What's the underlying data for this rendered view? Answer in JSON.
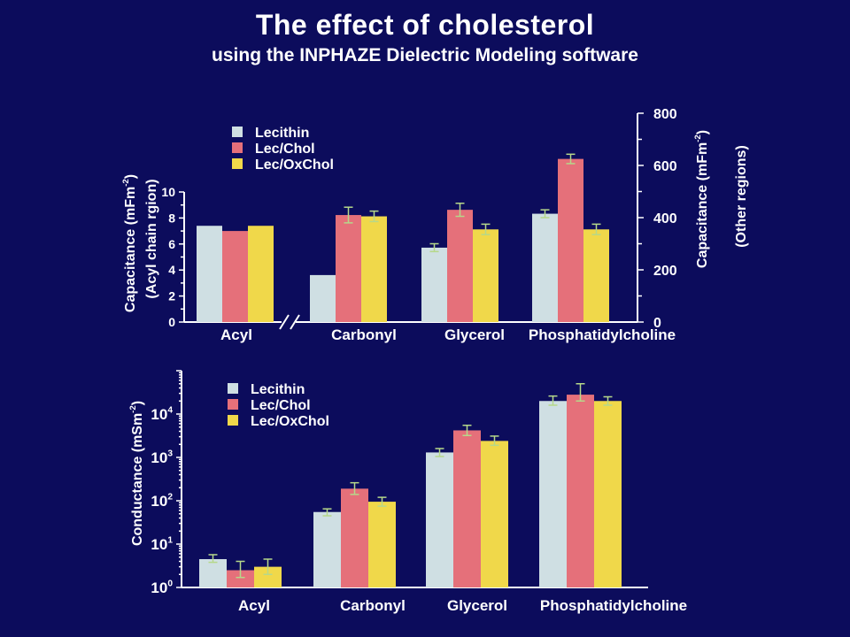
{
  "title": "The effect of cholesterol",
  "subtitle": "using the INPHAZE Dielectric Modeling software",
  "colors": {
    "background": "#0c0c5c",
    "Lecithin": "#cfdfe3",
    "Lec/Chol": "#e5707a",
    "Lec/OxChol": "#f0d84a",
    "errorbar": "#b6d88a"
  },
  "chart_data": [
    {
      "type": "bar",
      "categories": [
        "Acyl",
        "Carbonyl",
        "Glycerol",
        "Phosphatidylcholine"
      ],
      "legend": {
        "entries": [
          "Lecithin",
          "Lec/Chol",
          "Lec/OxChol"
        ],
        "entry_colors": [
          "#ffffff",
          "#ff7fbf",
          "#ffd800"
        ]
      },
      "left_axis": {
        "label_line1": "Capacitance (mFm",
        "label_sup": "-2",
        "label_line1_end": ")",
        "label_line2": "(Acyl chain rgion)",
        "range": [
          0,
          10
        ],
        "ticks": [
          "0",
          "2",
          "4",
          "6",
          "8",
          "10"
        ],
        "applies_to": [
          "Acyl"
        ]
      },
      "right_axis": {
        "label_line1": "Capacitance (mFm",
        "label_sup": "-2",
        "label_line1_end": ")",
        "label_line2": "(Other regions)",
        "range": [
          0,
          800
        ],
        "ticks": [
          "0",
          "200",
          "400",
          "600",
          "800"
        ],
        "applies_to": [
          "Carbonyl",
          "Glycerol",
          "Phosphatidylcholine"
        ]
      },
      "series": [
        {
          "name": "Lecithin",
          "values": [
            7.4,
            180,
            285,
            415
          ],
          "errors": [
            null,
            null,
            15,
            15
          ]
        },
        {
          "name": "Lec/Chol",
          "values": [
            7.0,
            410,
            430,
            625
          ],
          "errors": [
            null,
            30,
            25,
            18
          ]
        },
        {
          "name": "Lec/OxChol",
          "values": [
            7.4,
            405,
            355,
            355
          ],
          "errors": [
            null,
            20,
            20,
            20
          ]
        }
      ]
    },
    {
      "type": "bar",
      "log_scale": true,
      "categories": [
        "Acyl",
        "Carbonyl",
        "Glycerol",
        "Phosphatidylcholine"
      ],
      "legend": {
        "entries": [
          "Lecithin",
          "Lec/Chol",
          "Lec/OxChol"
        ],
        "entry_colors": [
          "#ffffff",
          "#ff7fbf",
          "#ffd800"
        ]
      },
      "y_axis": {
        "label": "Conductance (mSm",
        "label_sup": "-2",
        "label_end": ")",
        "range": [
          1,
          100000
        ],
        "tick_labels": [
          {
            "base": "10",
            "exp": "0"
          },
          {
            "base": "10",
            "exp": "1"
          },
          {
            "base": "10",
            "exp": "2"
          },
          {
            "base": "10",
            "exp": "3"
          },
          {
            "base": "10",
            "exp": "4"
          }
        ]
      },
      "series": [
        {
          "name": "Lecithin",
          "values": [
            4.5,
            55,
            1300,
            20000
          ],
          "err_low": [
            3.8,
            45,
            1050,
            16000
          ],
          "err_high": [
            5.7,
            65,
            1600,
            26000
          ]
        },
        {
          "name": "Lec/Chol",
          "values": [
            2.5,
            190,
            4200,
            28000
          ],
          "err_low": [
            1.7,
            140,
            3200,
            20000
          ],
          "err_high": [
            4.0,
            260,
            5500,
            50000
          ]
        },
        {
          "name": "Lec/OxChol",
          "values": [
            3.0,
            95,
            2400,
            20000
          ],
          "err_low": [
            2.0,
            75,
            1900,
            16000
          ],
          "err_high": [
            4.5,
            120,
            3100,
            25000
          ]
        }
      ]
    }
  ]
}
